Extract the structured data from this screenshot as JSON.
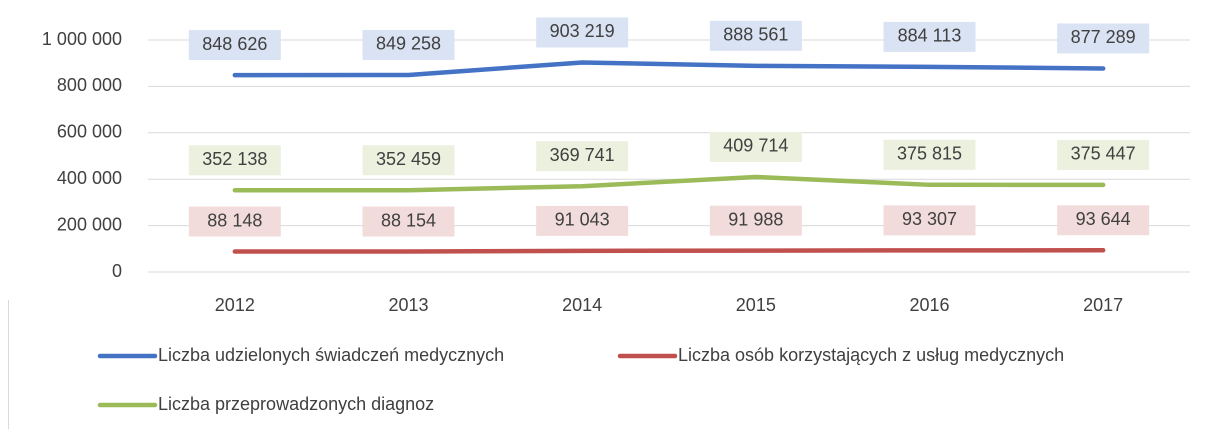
{
  "chart_data": {
    "type": "line",
    "categories": [
      "2012",
      "2013",
      "2014",
      "2015",
      "2016",
      "2017"
    ],
    "series": [
      {
        "name": "Liczba udzielonych świadczeń medycznych",
        "color": "#4472c4",
        "label_bg": "#dae3f3",
        "values": [
          848626,
          849258,
          903219,
          888561,
          884113,
          877289
        ],
        "value_labels": [
          "848 626",
          "849 258",
          "903 219",
          "888 561",
          "884 113",
          "877 289"
        ]
      },
      {
        "name": "Liczba osób korzystających z usług medycznych",
        "color": "#c0504d",
        "label_bg": "#f2dcdb",
        "values": [
          88148,
          88154,
          91043,
          91988,
          93307,
          93644
        ],
        "value_labels": [
          "88 148",
          "88 154",
          "91 043",
          "91 988",
          "93 307",
          "93 644"
        ]
      },
      {
        "name": "Liczba przeprowadzonych diagnoz",
        "color": "#9bbb59",
        "label_bg": "#ebf1de",
        "values": [
          352138,
          352459,
          369741,
          409714,
          375815,
          375447
        ],
        "value_labels": [
          "352 138",
          "352 459",
          "369 741",
          "409 714",
          "375 815",
          "375 447"
        ]
      }
    ],
    "ylim": [
      0,
      1000000
    ],
    "yticks": [
      0,
      {
        "value": 200000,
        "label": "200 000"
      },
      {
        "value": 400000,
        "label": "400 000"
      },
      {
        "value": 600000,
        "label": "600 000"
      },
      {
        "value": 800000,
        "label": "800 000"
      },
      {
        "value": 1000000,
        "label": "1 000 000"
      }
    ],
    "grid": true,
    "legend": "bottom"
  }
}
